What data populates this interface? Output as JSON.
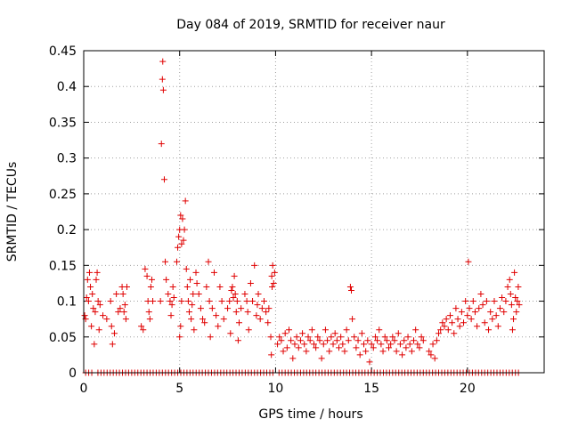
{
  "chart_data": {
    "type": "scatter",
    "title": "Day 084 of 2019, SRMTID for receiver naur",
    "xlabel": "GPS time / hours",
    "ylabel": "SRMTID / TECUs",
    "xlim": [
      0,
      24
    ],
    "ylim": [
      0,
      0.45
    ],
    "grid": true,
    "marker": "+",
    "color": "#e00000",
    "x_ticks": [
      0,
      5,
      10,
      15,
      20
    ],
    "x_tick_labels": [
      "0",
      "5",
      "10",
      "15",
      "20"
    ],
    "y_ticks": [
      0,
      0.05,
      0.1,
      0.15,
      0.2,
      0.25,
      0.3,
      0.35,
      0.4,
      0.45
    ],
    "y_tick_labels": [
      "0",
      "0.05",
      "0.1",
      "0.15",
      "0.2",
      "0.25",
      "0.3",
      "0.35",
      "0.4",
      "0.45"
    ],
    "series": [
      {
        "name": "SRMTID",
        "points": [
          [
            0.05,
            0.08
          ],
          [
            0.1,
            0.075
          ],
          [
            0.15,
            0.105
          ],
          [
            0.2,
            0.13
          ],
          [
            0.25,
            0.1
          ],
          [
            0.3,
            0.14
          ],
          [
            0.35,
            0.12
          ],
          [
            0.4,
            0.065
          ],
          [
            0.45,
            0.11
          ],
          [
            0.5,
            0.09
          ],
          [
            0.55,
            0.04
          ],
          [
            0.6,
            0.085
          ],
          [
            0.65,
            0.13
          ],
          [
            0.7,
            0.14
          ],
          [
            0.75,
            0.1
          ],
          [
            0.8,
            0.06
          ],
          [
            0.85,
            0.095
          ],
          [
            1.0,
            0.08
          ],
          [
            1.2,
            0.075
          ],
          [
            1.4,
            0.1
          ],
          [
            1.45,
            0.065
          ],
          [
            1.5,
            0.04
          ],
          [
            1.6,
            0.055
          ],
          [
            1.7,
            0.11
          ],
          [
            1.8,
            0.085
          ],
          [
            1.9,
            0.09
          ],
          [
            2.0,
            0.12
          ],
          [
            2.05,
            0.11
          ],
          [
            2.1,
            0.085
          ],
          [
            2.15,
            0.095
          ],
          [
            2.2,
            0.075
          ],
          [
            2.25,
            0.12
          ],
          [
            3.0,
            0.065
          ],
          [
            3.1,
            0.06
          ],
          [
            3.2,
            0.145
          ],
          [
            3.3,
            0.135
          ],
          [
            3.35,
            0.1
          ],
          [
            3.4,
            0.085
          ],
          [
            3.45,
            0.075
          ],
          [
            3.5,
            0.12
          ],
          [
            3.55,
            0.13
          ],
          [
            3.6,
            0.1
          ],
          [
            4.0,
            0.1
          ],
          [
            4.05,
            0.32
          ],
          [
            4.1,
            0.41
          ],
          [
            4.12,
            0.435
          ],
          [
            4.15,
            0.395
          ],
          [
            4.2,
            0.27
          ],
          [
            4.25,
            0.155
          ],
          [
            4.3,
            0.13
          ],
          [
            4.4,
            0.11
          ],
          [
            4.5,
            0.1
          ],
          [
            4.55,
            0.08
          ],
          [
            4.6,
            0.095
          ],
          [
            4.65,
            0.12
          ],
          [
            4.7,
            0.105
          ],
          [
            4.85,
            0.155
          ],
          [
            4.9,
            0.175
          ],
          [
            4.95,
            0.19
          ],
          [
            5.0,
            0.2
          ],
          [
            5.05,
            0.22
          ],
          [
            5.1,
            0.18
          ],
          [
            5.15,
            0.215
          ],
          [
            5.2,
            0.185
          ],
          [
            5.25,
            0.2
          ],
          [
            5.3,
            0.24
          ],
          [
            5.35,
            0.145
          ],
          [
            5.4,
            0.12
          ],
          [
            5.45,
            0.1
          ],
          [
            5.5,
            0.085
          ],
          [
            5.55,
            0.13
          ],
          [
            5.6,
            0.075
          ],
          [
            5.65,
            0.095
          ],
          [
            5.7,
            0.11
          ],
          [
            5.75,
            0.06
          ],
          [
            5.85,
            0.14
          ],
          [
            5.9,
            0.125
          ],
          [
            5.0,
            0.05
          ],
          [
            5.05,
            0.065
          ],
          [
            5.1,
            0.1
          ],
          [
            6.0,
            0.11
          ],
          [
            6.1,
            0.09
          ],
          [
            6.2,
            0.075
          ],
          [
            6.3,
            0.07
          ],
          [
            6.4,
            0.12
          ],
          [
            6.5,
            0.155
          ],
          [
            6.55,
            0.1
          ],
          [
            6.6,
            0.05
          ],
          [
            6.7,
            0.09
          ],
          [
            6.8,
            0.14
          ],
          [
            6.9,
            0.08
          ],
          [
            7.0,
            0.065
          ],
          [
            7.1,
            0.12
          ],
          [
            7.2,
            0.1
          ],
          [
            7.3,
            0.075
          ],
          [
            7.5,
            0.09
          ],
          [
            7.6,
            0.1
          ],
          [
            7.65,
            0.055
          ],
          [
            7.7,
            0.115
          ],
          [
            7.75,
            0.12
          ],
          [
            7.8,
            0.105
          ],
          [
            7.85,
            0.135
          ],
          [
            7.9,
            0.11
          ],
          [
            7.95,
            0.085
          ],
          [
            8.0,
            0.1
          ],
          [
            8.05,
            0.045
          ],
          [
            8.1,
            0.07
          ],
          [
            8.2,
            0.09
          ],
          [
            8.4,
            0.11
          ],
          [
            8.5,
            0.1
          ],
          [
            8.55,
            0.085
          ],
          [
            8.6,
            0.06
          ],
          [
            8.7,
            0.125
          ],
          [
            8.8,
            0.1
          ],
          [
            8.9,
            0.15
          ],
          [
            9.0,
            0.08
          ],
          [
            9.05,
            0.095
          ],
          [
            9.1,
            0.11
          ],
          [
            9.2,
            0.075
          ],
          [
            9.3,
            0.09
          ],
          [
            9.4,
            0.1
          ],
          [
            9.5,
            0.085
          ],
          [
            9.6,
            0.07
          ],
          [
            9.65,
            0.09
          ],
          [
            9.8,
            0.135
          ],
          [
            9.85,
            0.15
          ],
          [
            9.9,
            0.125
          ],
          [
            9.95,
            0.14
          ],
          [
            9.75,
            0.05
          ],
          [
            9.78,
            0.025
          ],
          [
            9.82,
            0.12
          ],
          [
            10.1,
            0.04
          ],
          [
            10.2,
            0.05
          ],
          [
            10.3,
            0.045
          ],
          [
            10.4,
            0.03
          ],
          [
            10.5,
            0.055
          ],
          [
            10.6,
            0.035
          ],
          [
            10.7,
            0.06
          ],
          [
            10.8,
            0.045
          ],
          [
            10.9,
            0.02
          ],
          [
            11.0,
            0.04
          ],
          [
            11.1,
            0.05
          ],
          [
            11.2,
            0.035
          ],
          [
            11.3,
            0.045
          ],
          [
            11.4,
            0.055
          ],
          [
            11.5,
            0.04
          ],
          [
            11.6,
            0.03
          ],
          [
            11.7,
            0.05
          ],
          [
            11.8,
            0.045
          ],
          [
            11.9,
            0.06
          ],
          [
            12.0,
            0.04
          ],
          [
            12.1,
            0.035
          ],
          [
            12.2,
            0.05
          ],
          [
            12.3,
            0.045
          ],
          [
            12.4,
            0.02
          ],
          [
            12.5,
            0.04
          ],
          [
            12.6,
            0.06
          ],
          [
            12.7,
            0.045
          ],
          [
            12.8,
            0.03
          ],
          [
            12.9,
            0.05
          ],
          [
            13.0,
            0.04
          ],
          [
            13.1,
            0.055
          ],
          [
            13.2,
            0.045
          ],
          [
            13.3,
            0.035
          ],
          [
            13.4,
            0.05
          ],
          [
            13.5,
            0.04
          ],
          [
            13.6,
            0.03
          ],
          [
            13.7,
            0.06
          ],
          [
            13.8,
            0.045
          ],
          [
            13.9,
            0.12
          ],
          [
            13.95,
            0.115
          ],
          [
            14.0,
            0.075
          ],
          [
            14.1,
            0.05
          ],
          [
            14.2,
            0.035
          ],
          [
            14.3,
            0.045
          ],
          [
            14.4,
            0.025
          ],
          [
            14.5,
            0.055
          ],
          [
            14.6,
            0.04
          ],
          [
            14.7,
            0.03
          ],
          [
            14.8,
            0.045
          ],
          [
            14.9,
            0.015
          ],
          [
            15.0,
            0.04
          ],
          [
            15.1,
            0.035
          ],
          [
            15.2,
            0.05
          ],
          [
            15.3,
            0.045
          ],
          [
            15.4,
            0.06
          ],
          [
            15.5,
            0.04
          ],
          [
            15.6,
            0.03
          ],
          [
            15.7,
            0.05
          ],
          [
            15.8,
            0.045
          ],
          [
            15.9,
            0.035
          ],
          [
            16.0,
            0.04
          ],
          [
            16.1,
            0.05
          ],
          [
            16.2,
            0.045
          ],
          [
            16.3,
            0.03
          ],
          [
            16.4,
            0.055
          ],
          [
            16.5,
            0.04
          ],
          [
            16.6,
            0.025
          ],
          [
            16.7,
            0.045
          ],
          [
            16.8,
            0.035
          ],
          [
            16.9,
            0.05
          ],
          [
            17.0,
            0.04
          ],
          [
            17.1,
            0.03
          ],
          [
            17.2,
            0.045
          ],
          [
            17.3,
            0.06
          ],
          [
            17.4,
            0.04
          ],
          [
            17.5,
            0.035
          ],
          [
            17.6,
            0.05
          ],
          [
            17.7,
            0.045
          ],
          [
            18.0,
            0.03
          ],
          [
            18.1,
            0.025
          ],
          [
            18.2,
            0.04
          ],
          [
            18.3,
            0.02
          ],
          [
            18.4,
            0.045
          ],
          [
            18.5,
            0.055
          ],
          [
            18.6,
            0.06
          ],
          [
            18.7,
            0.07
          ],
          [
            18.8,
            0.065
          ],
          [
            18.9,
            0.075
          ],
          [
            19.0,
            0.06
          ],
          [
            19.1,
            0.08
          ],
          [
            19.2,
            0.07
          ],
          [
            19.3,
            0.055
          ],
          [
            19.4,
            0.09
          ],
          [
            19.5,
            0.075
          ],
          [
            19.6,
            0.065
          ],
          [
            19.7,
            0.085
          ],
          [
            19.8,
            0.07
          ],
          [
            19.9,
            0.1
          ],
          [
            20.0,
            0.08
          ],
          [
            20.05,
            0.155
          ],
          [
            20.1,
            0.09
          ],
          [
            20.2,
            0.075
          ],
          [
            20.3,
            0.1
          ],
          [
            20.4,
            0.085
          ],
          [
            20.5,
            0.065
          ],
          [
            20.6,
            0.09
          ],
          [
            20.7,
            0.11
          ],
          [
            20.8,
            0.095
          ],
          [
            20.9,
            0.07
          ],
          [
            21.0,
            0.1
          ],
          [
            21.1,
            0.06
          ],
          [
            21.2,
            0.085
          ],
          [
            21.3,
            0.075
          ],
          [
            21.4,
            0.1
          ],
          [
            21.5,
            0.08
          ],
          [
            21.6,
            0.065
          ],
          [
            21.7,
            0.09
          ],
          [
            21.8,
            0.105
          ],
          [
            21.9,
            0.085
          ],
          [
            22.0,
            0.1
          ],
          [
            22.1,
            0.12
          ],
          [
            22.2,
            0.13
          ],
          [
            22.25,
            0.11
          ],
          [
            22.3,
            0.095
          ],
          [
            22.35,
            0.06
          ],
          [
            22.4,
            0.075
          ],
          [
            22.45,
            0.14
          ],
          [
            22.5,
            0.105
          ],
          [
            22.55,
            0.085
          ],
          [
            22.6,
            0.1
          ],
          [
            22.65,
            0.12
          ],
          [
            22.7,
            0.095
          ]
        ]
      }
    ],
    "zero_band": {
      "y": 0,
      "x_start": 0.1,
      "x_end": 22.8,
      "step": 0.16,
      "gaps": [
        [
          0.5,
          0.7
        ],
        [
          5.9,
          6.0
        ],
        [
          9.95,
          10.05
        ]
      ]
    }
  }
}
